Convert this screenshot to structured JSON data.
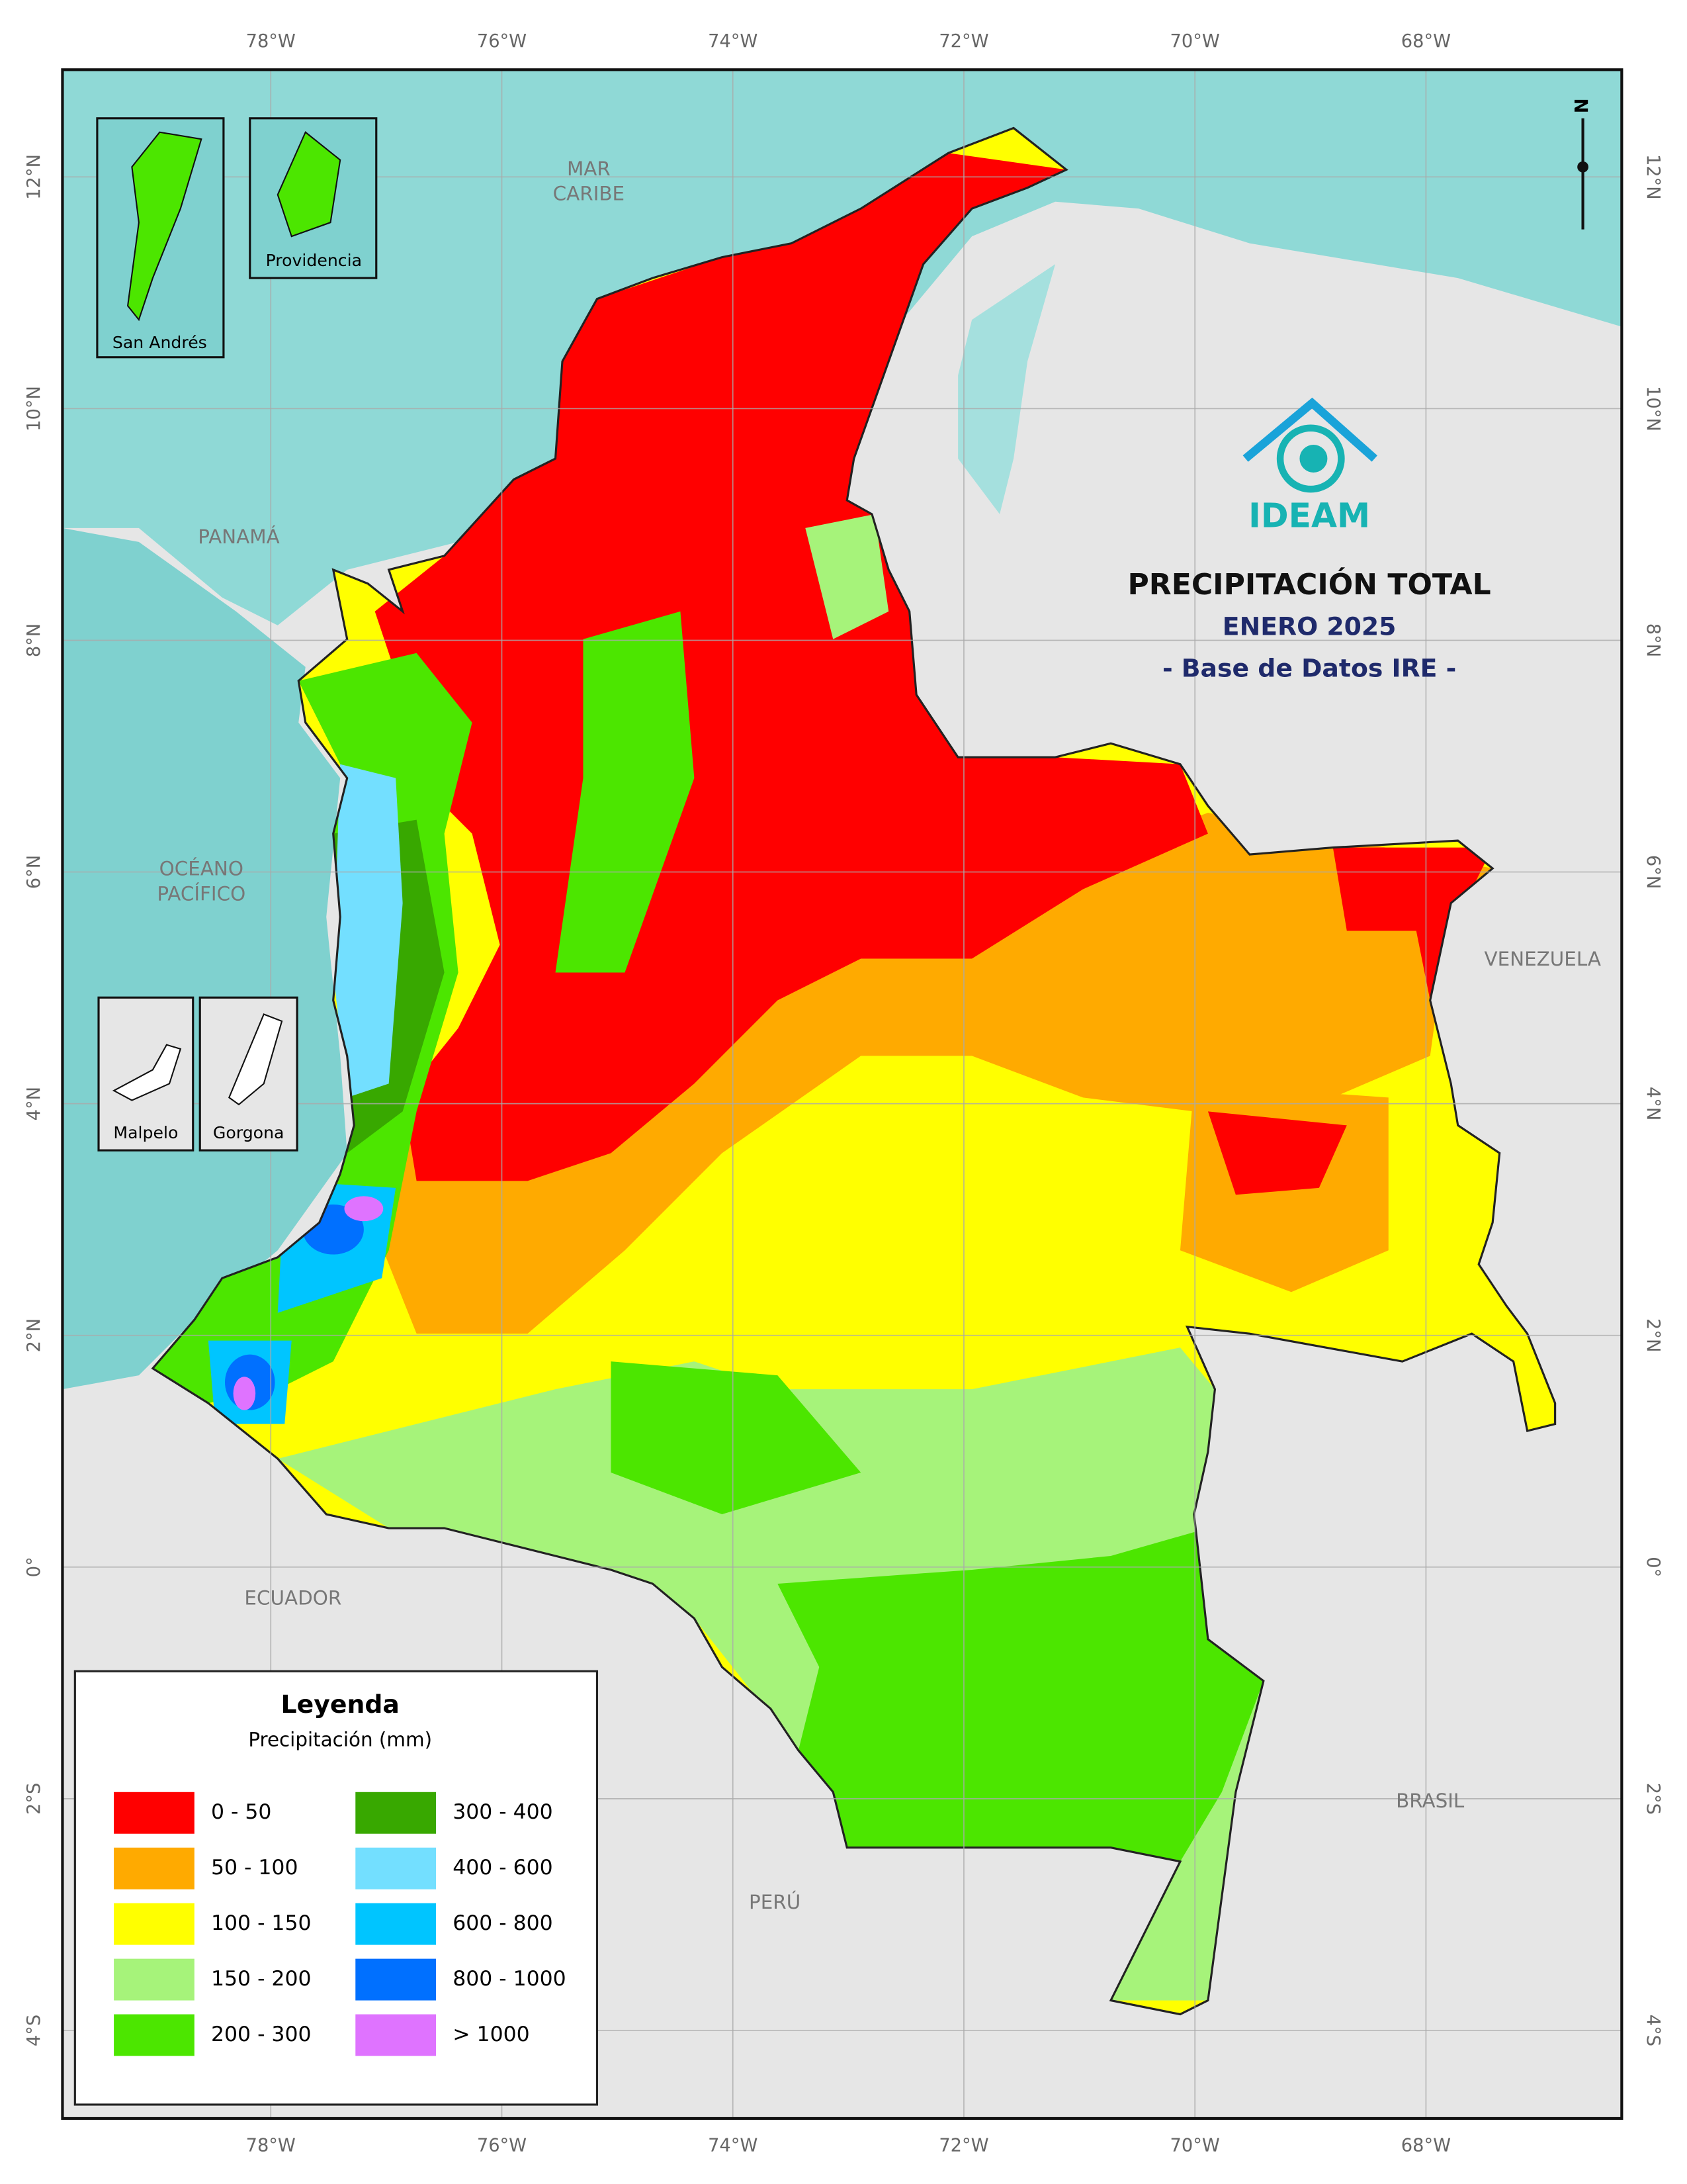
{
  "map": {
    "title": "PRECIPITACIÓN TOTAL",
    "subtitle": "ENERO 2025",
    "source": "- Base de Datos IRE -",
    "logo": "IDEAM",
    "north": "N",
    "xticks": [
      {
        "value": -78,
        "label": "78°W"
      },
      {
        "value": -76,
        "label": "76°W"
      },
      {
        "value": -74,
        "label": "74°W"
      },
      {
        "value": -72,
        "label": "72°W"
      },
      {
        "value": -70,
        "label": "70°W"
      },
      {
        "value": -68,
        "label": "68°W"
      }
    ],
    "yticks": [
      {
        "value": 12,
        "label": "12°N"
      },
      {
        "value": 10,
        "label": "10°N"
      },
      {
        "value": 8,
        "label": "8°N"
      },
      {
        "value": 6,
        "label": "6°N"
      },
      {
        "value": 4,
        "label": "4°N"
      },
      {
        "value": 2,
        "label": "2°N"
      },
      {
        "value": 0,
        "label": "0°"
      },
      {
        "value": -2,
        "label": "2°S"
      },
      {
        "value": -4,
        "label": "4°S"
      }
    ],
    "places": {
      "mar_caribe": [
        "MAR",
        "CARIBE"
      ],
      "oceano_pacifico": [
        "OCÉANO",
        "PACÍFICO"
      ],
      "panama": "PANAMÁ",
      "venezuela": "VENEZUELA",
      "ecuador": "ECUADOR",
      "peru": "PERÚ",
      "brasil": "BRASIL"
    },
    "insets": [
      "San Andrés",
      "Providencia",
      "Malpelo",
      "Gorgona"
    ],
    "legend": {
      "title": "Leyenda",
      "subtitle": "Precipitación (mm)",
      "items": [
        {
          "label": "0 - 50",
          "color": "#ff0000"
        },
        {
          "label": "50 - 100",
          "color": "#ffaa00"
        },
        {
          "label": "100 - 150",
          "color": "#ffff00"
        },
        {
          "label": "150 - 200",
          "color": "#a6f37a"
        },
        {
          "label": "200 - 300",
          "color": "#4ce600"
        },
        {
          "label": "300 - 400",
          "color": "#38a800"
        },
        {
          "label": "400 - 600",
          "color": "#73dfff"
        },
        {
          "label": "600 - 800",
          "color": "#00c5ff"
        },
        {
          "label": "800 - 1000",
          "color": "#0070ff"
        },
        {
          "label": "> 1000",
          "color": "#df73ff"
        }
      ]
    }
  }
}
